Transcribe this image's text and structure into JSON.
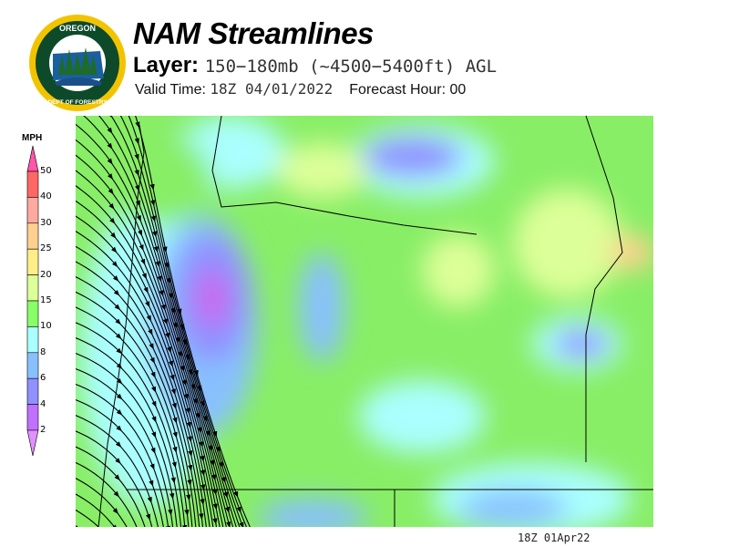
{
  "header": {
    "title": "NAM Streamlines",
    "layer_label": "Layer:",
    "layer_value": "150−180mb (~4500−5400ft) AGL",
    "valid_label": "Valid Time:",
    "valid_value": "18Z 04/01/2022",
    "forecast_hour": "Forecast Hour: 00"
  },
  "logo": {
    "text_top": "OREGON",
    "text_bottom": "DEPARTMENT OF FORESTRY",
    "colors": {
      "ring": "#f2c400",
      "field": "#0d4a2a"
    }
  },
  "colorbar": {
    "unit": "MPH",
    "labels": [
      "50",
      "40",
      "30",
      "25",
      "20",
      "15",
      "10",
      "8",
      "6",
      "4",
      "2"
    ],
    "colors": [
      "#ff6666",
      "#ffaaa0",
      "#ffd090",
      "#ffee88",
      "#ddff99",
      "#88ff66",
      "#aaffff",
      "#88c0ff",
      "#9090ff",
      "#c070ff"
    ],
    "over_color": "#ff55aa",
    "under_color": "#e090ff"
  },
  "footer": {
    "stamp": "18Z 01Apr22"
  }
}
